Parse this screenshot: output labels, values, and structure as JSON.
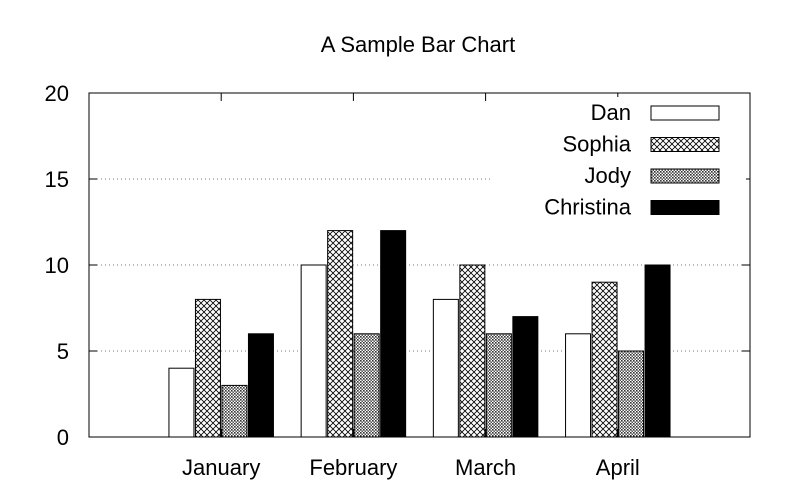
{
  "chart_data": {
    "type": "bar",
    "title": "A Sample Bar Chart",
    "xlabel": "",
    "ylabel": "",
    "categories": [
      "January",
      "February",
      "March",
      "April"
    ],
    "series": [
      {
        "name": "Dan",
        "values": [
          4,
          10,
          8,
          6
        ],
        "pattern": "solid-white"
      },
      {
        "name": "Sophia",
        "values": [
          8,
          12,
          10,
          9
        ],
        "pattern": "crosshatch"
      },
      {
        "name": "Jody",
        "values": [
          3,
          6,
          6,
          5
        ],
        "pattern": "dense-dots"
      },
      {
        "name": "Christina",
        "values": [
          6,
          12,
          7,
          10
        ],
        "pattern": "solid-black"
      }
    ],
    "ylim": [
      0,
      20
    ],
    "yticks": [
      "0",
      "5",
      "10",
      "15",
      "20"
    ],
    "grid": true,
    "legend_position": "top-right",
    "colors": {
      "background": "#ffffff",
      "stroke": "#000000",
      "black": "#000000",
      "white": "#ffffff"
    }
  }
}
